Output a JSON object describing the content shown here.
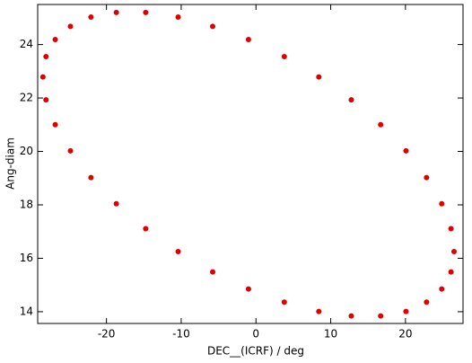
{
  "chart_data": {
    "type": "scatter",
    "x_label": "DEC__(ICRF) / deg",
    "y_label": "Ang-diam",
    "series": [
      {
        "color": "#e00000",
        "x": [
          26.5,
          26.09,
          24.85,
          22.82,
          20.07,
          16.68,
          12.75,
          8.41,
          3.79,
          -1,
          -5.79,
          -10.41,
          -14.75,
          -18.68,
          -22.07,
          -24.82,
          -26.85,
          -28.09,
          -28.5,
          -28.09,
          -26.85,
          -24.82,
          -22.07,
          -18.68,
          -14.75,
          -10.41,
          -5.79,
          -1,
          3.79,
          8.41,
          12.75,
          16.68,
          20.07,
          22.82,
          24.85,
          26.09
        ],
        "values": [
          16.25,
          17.11,
          18.04,
          19.02,
          20.02,
          21.0,
          21.93,
          22.79,
          23.55,
          24.19,
          24.68,
          25.03,
          25.2,
          25.2,
          25.03,
          24.68,
          24.19,
          23.55,
          22.79,
          21.93,
          21.0,
          20.02,
          19.02,
          18.04,
          17.11,
          16.25,
          15.49,
          14.85,
          14.36,
          14.01,
          13.84,
          13.84,
          14.01,
          14.36,
          14.85,
          15.49
        ]
      }
    ],
    "xlim": [
      -29.2,
      27.7
    ],
    "ylim": [
      13.56,
      25.5
    ],
    "xticks": [
      -20,
      -10,
      0,
      10,
      20
    ],
    "yticks": [
      14,
      16,
      18,
      20,
      22,
      24
    ]
  }
}
